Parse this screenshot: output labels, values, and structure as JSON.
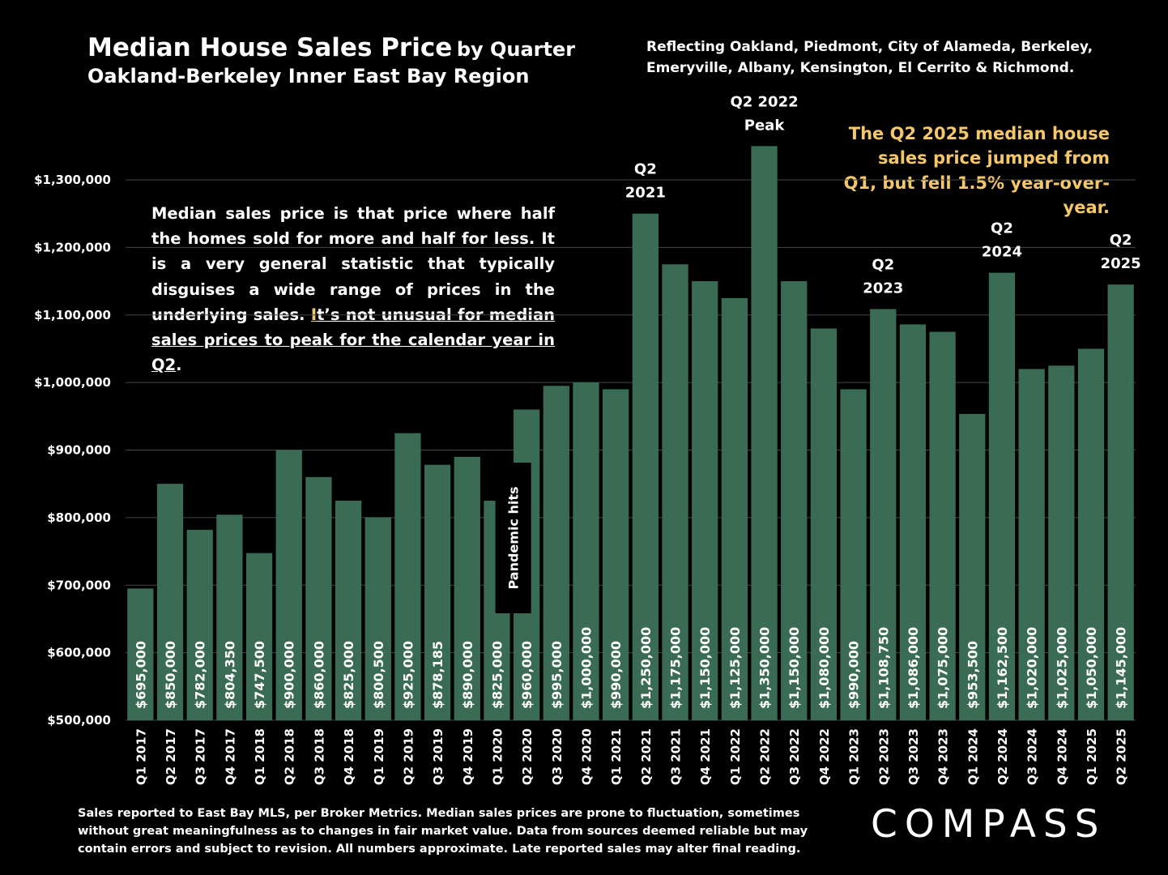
{
  "header": {
    "title_main": "Median House Sales Price",
    "title_suffix": "by Quarter",
    "subtitle": "Oakland-Berkeley Inner East Bay Region",
    "region_note": "Reflecting Oakland, Piedmont, City of Alameda, Berkeley, Emeryville, Albany, Kensington, El Cerrito & Richmond."
  },
  "callout": "The Q2 2025 median house sales price jumped from Q1, but fell 1.5% year-over-year.",
  "explanation": {
    "part1": "Median sales price is that price where half the homes sold for more and half for less. It is a very general statistic that typically disguises a wide range of prices in the underlying sales.",
    "part2_first_letter": "I",
    "part2_rest": "t’s not unusual for median sales prices to peak for the calendar year in Q2",
    "part2_end": "."
  },
  "footer": "Sales reported to East Bay MLS, per Broker Metrics. Median sales prices are prone to fluctuation, sometimes without great meaningfulness as to changes in fair market value. Data from sources deemed reliable but may contain errors and subject to revision. All numbers approximate. Late reported sales may alter final reading.",
  "logo": "COMPASS",
  "colors": {
    "bar": "#3a6b55",
    "background": "#000000",
    "grid": "#444444",
    "highlight": "#f5c76b"
  },
  "chart_data": {
    "type": "bar",
    "categories": [
      "Q1 2017",
      "Q2 2017",
      "Q3 2017",
      "Q4 2017",
      "Q1 2018",
      "Q2 2018",
      "Q3 2018",
      "Q4 2018",
      "Q1 2019",
      "Q2 2019",
      "Q3 2019",
      "Q4 2019",
      "Q1 2020",
      "Q2 2020",
      "Q3 2020",
      "Q4 2020",
      "Q1 2021",
      "Q2 2021",
      "Q3 2021",
      "Q4 2021",
      "Q1 2022",
      "Q2 2022",
      "Q3 2022",
      "Q4 2022",
      "Q1 2023",
      "Q2 2023",
      "Q3 2023",
      "Q4 2023",
      "Q1 2024",
      "Q2 2024",
      "Q3 2024",
      "Q4 2024",
      "Q1 2025",
      "Q2 2025"
    ],
    "values": [
      695000,
      850000,
      782000,
      804350,
      747500,
      900000,
      860000,
      825000,
      800500,
      925000,
      878185,
      890000,
      825000,
      960000,
      995000,
      1000000,
      990000,
      1250000,
      1175000,
      1150000,
      1125000,
      1350000,
      1150000,
      1080000,
      990000,
      1108750,
      1086000,
      1075000,
      953500,
      1162500,
      1020000,
      1025000,
      1050000,
      1145000
    ],
    "data_labels": [
      "$695,000",
      "$850,000",
      "$782,000",
      "$804,350",
      "$747,500",
      "$900,000",
      "$860,000",
      "$825,000",
      "$800,500",
      "$925,000",
      "$878,185",
      "$890,000",
      "$825,000",
      "$960,000",
      "$995,000",
      "$1,000,000",
      "$990,000",
      "$1,250,000",
      "$1,175,000",
      "$1,150,000",
      "$1,125,000",
      "$1,350,000",
      "$1,150,000",
      "$1,080,000",
      "$990,000",
      "$1,108,750",
      "$1,086,000",
      "$1,075,000",
      "$953,500",
      "$1,162,500",
      "$1,020,000",
      "$1,025,000",
      "$1,050,000",
      "$1,145,000"
    ],
    "ylim": [
      500000,
      1350000
    ],
    "yticks": [
      500000,
      600000,
      700000,
      800000,
      900000,
      1000000,
      1100000,
      1200000,
      1300000
    ],
    "ytick_labels": [
      "$500,000",
      "$600,000",
      "$700,000",
      "$800,000",
      "$900,000",
      "$1,000,000",
      "$1,100,000",
      "$1,200,000",
      "$1,300,000"
    ],
    "grid": true,
    "annotations": [
      {
        "category": "Q2 2021",
        "lines": [
          "Q2",
          "2021"
        ]
      },
      {
        "category": "Q2 2022",
        "lines": [
          "Q2 2022",
          "Peak"
        ]
      },
      {
        "category": "Q2 2023",
        "lines": [
          "Q2",
          "2023"
        ]
      },
      {
        "category": "Q2 2024",
        "lines": [
          "Q2",
          "2024"
        ]
      },
      {
        "category": "Q2 2025",
        "lines": [
          "Q2",
          "2025"
        ]
      }
    ],
    "event_label": {
      "category": "Q1 2020",
      "text": "Pandemic hits"
    }
  }
}
